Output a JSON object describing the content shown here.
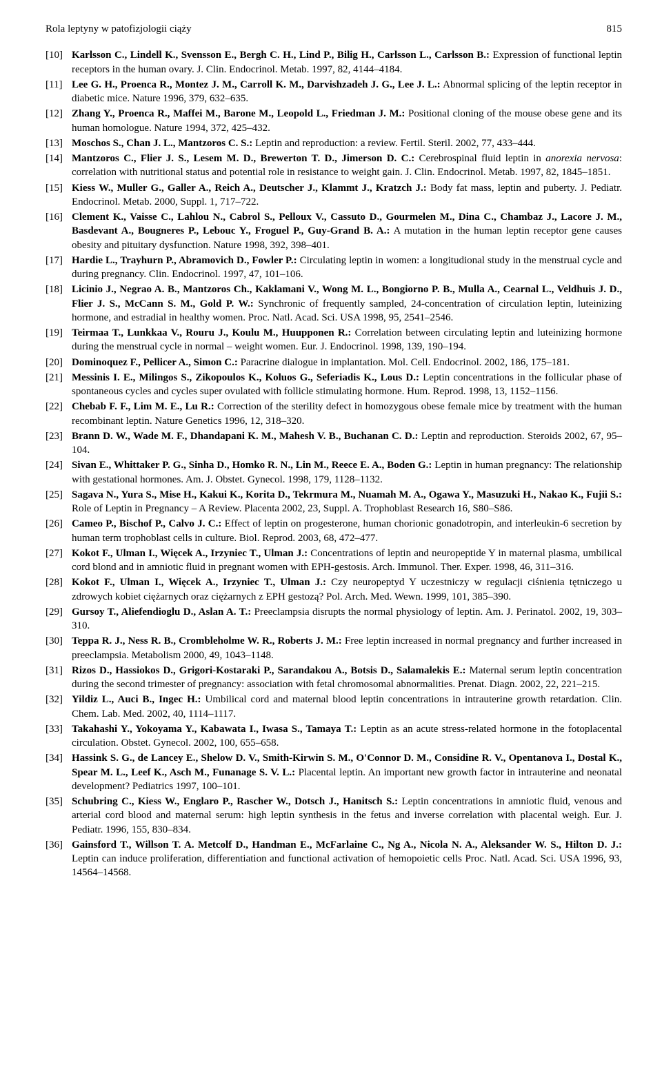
{
  "header": {
    "running_title": "Rola leptyny w patofizjologii ciąży",
    "page_number": "815"
  },
  "references": [
    {
      "num": "[10]",
      "authors": "Karlsson C., Lindell K., Svensson E., Bergh C. H., Lind P., Bilig H., Carlsson L., Carlsson B.:",
      "rest": " Expression of functional leptin receptors in the human ovary. J. Clin. Endocrinol. Metab. 1997, 82, 4144–4184."
    },
    {
      "num": "[11]",
      "authors": "Lee G. H., Proenca R., Montez J. M., Carroll K. M., Darvishzadeh J. G., Lee J. L.:",
      "rest": " Abnormal splicing of the leptin receptor in diabetic mice. Nature 1996, 379, 632–635."
    },
    {
      "num": "[12]",
      "authors": "Zhang Y., Proenca R., Maffei M., Barone M., Leopold L., Friedman J. M.:",
      "rest": " Positional cloning of the mouse obese gene and its human homologue. Nature 1994, 372, 425–432."
    },
    {
      "num": "[13]",
      "authors": "Moschos S., Chan J. L., Mantzoros C. S.:",
      "rest": " Leptin and reproduction: a review. Fertil. Steril. 2002, 77, 433–444."
    },
    {
      "num": "[14]",
      "authors": "Mantzoros C., Flier J. S., Lesem M. D., Brewerton T. D., Jimerson D. C.:",
      "rest": " Cerebrospinal fluid leptin in ",
      "italic": "anorexia nervosa",
      "rest2": ": correlation with nutritional status and potential role in resistance to weight gain. J. Clin. Endocrinol. Metab. 1997, 82, 1845–1851."
    },
    {
      "num": "[15]",
      "authors": "Kiess W., Muller G., Galler A., Reich A., Deutscher J., Klammt J., Kratzch J.:",
      "rest": " Body fat mass, leptin and puberty. J. Pediatr. Endocrinol. Metab. 2000, Suppl. 1, 717–722."
    },
    {
      "num": "[16]",
      "authors": "Clement K., Vaisse C., Lahlou N., Cabrol S., Pelloux V., Cassuto D., Gourmelen M., Dina C., Chambaz J., Lacore J. M., Basdevant A., Bougneres P., Lebouc Y., Froguel P., Guy-Grand B. A.:",
      "rest": " A mutation in the human leptin receptor gene causes obesity and pituitary dysfunction. Nature 1998, 392, 398–401."
    },
    {
      "num": "[17]",
      "authors": "Hardie L., Trayhurn P., Abramovich D., Fowler P.:",
      "rest": " Circulating leptin in women: a longitudional study in the menstrual cycle and during pregnancy. Clin. Endocrinol. 1997, 47, 101–106."
    },
    {
      "num": "[18]",
      "authors": "Licinio J., Negrao A. B., Mantzoros Ch., Kaklamani V., Wong M. L., Bongiorno P. B., Mulla A., Cearnal L., Veldhuis J. D., Flier J. S., McCann S. M., Gold P. W.:",
      "rest": " Synchronic of frequently sampled, 24-concentration of circulation leptin, luteinizing hormone, and estradial in healthy women. Proc. Natl. Acad. Sci. USA 1998, 95, 2541–2546."
    },
    {
      "num": "[19]",
      "authors": "Teirmaa T., Lunkkaa V., Rouru J., Koulu M., Huupponen R.:",
      "rest": " Correlation between circulating leptin and luteinizing hormone during the menstrual cycle in normal – weight women. Eur. J. Endocrinol. 1998, 139, 190–194."
    },
    {
      "num": "[20]",
      "authors": "Dominoquez F., Pellicer A., Simon C.:",
      "rest": " Paracrine dialogue in implantation. Mol. Cell. Endocrinol. 2002, 186, 175–181."
    },
    {
      "num": "[21]",
      "authors": "Messinis I. E., Milingos S., Zikopoulos K., Koluos G., Seferiadis K., Lous D.:",
      "rest": " Leptin concentrations in the follicular phase of spontaneous cycles and cycles super ovulated with follicle stimulating hormone. Hum. Reprod. 1998, 13, 1152–1156."
    },
    {
      "num": "[22]",
      "authors": "Chebab F. F., Lim M. E., Lu R.:",
      "rest": " Correction of the sterility defect in homozygous obese female mice by treatment with the human recombinant leptin. Nature Genetics 1996, 12, 318–320."
    },
    {
      "num": "[23]",
      "authors": "Brann D. W., Wade M. F., Dhandapani K. M., Mahesh V. B., Buchanan C. D.:",
      "rest": " Leptin and reproduction. Steroids 2002, 67, 95–104."
    },
    {
      "num": "[24]",
      "authors": "Sivan E., Whittaker P. G., Sinha D., Homko R. N., Lin M., Reece E. A., Boden G.:",
      "rest": " Leptin in human pregnancy: The relationship with gestational hormones. Am. J. Obstet. Gynecol. 1998, 179, 1128–1132."
    },
    {
      "num": "[25]",
      "authors": "Sagava N., Yura S., Mise H., Kakui K., Korita D., Tekrmura M., Nuamah M. A., Ogawa Y., Masuzuki H., Nakao K., Fujii S.:",
      "rest": " Role of Leptin in Pregnancy – A Review. Placenta 2002, 23, Suppl. A. Trophoblast Research 16, S80–S86."
    },
    {
      "num": "[26]",
      "authors": "Cameo P., Bischof P., Calvo J. C.:",
      "rest": " Effect of leptin on progesterone, human chorionic gonadotropin, and interleukin-6 secretion by human term trophoblast cells in culture. Biol. Reprod. 2003, 68, 472–477."
    },
    {
      "num": "[27]",
      "authors": "Kokot F., Ulman I., Więcek A., Irzyniec T., Ulman J.:",
      "rest": " Concentrations of leptin and neuropeptide Y in maternal plasma, umbilical cord blond and in amniotic fluid in pregnant women with EPH-gestosis. Arch. Immunol. Ther. Exper. 1998, 46, 311–316."
    },
    {
      "num": "[28]",
      "authors": "Kokot F., Ulman I., Więcek A., Irzyniec T., Ulman J.:",
      "rest": " Czy neuropeptyd Y uczestniczy w regulacji ciśnienia tętniczego u zdrowych kobiet ciężarnych oraz ciężarnych z EPH gestozą? Pol. Arch. Med. Wewn. 1999, 101, 385–390."
    },
    {
      "num": "[29]",
      "authors": "Gursoy T., Aliefendioglu D., Aslan A. T.:",
      "rest": " Preeclampsia disrupts the normal physiology of leptin. Am. J. Perinatol. 2002, 19, 303–310."
    },
    {
      "num": "[30]",
      "authors": "Teppa R. J., Ness R. B., Crombleholme W. R., Roberts J. M.:",
      "rest": " Free leptin increased in normal pregnancy and further increased in preeclampsia. Metabolism 2000, 49, 1043–1148."
    },
    {
      "num": "[31]",
      "authors": "Rizos D., Hassiokos D., Grigori-Kostaraki P., Sarandakou A., Botsis D., Salamalekis E.:",
      "rest": " Maternal serum leptin concentration during the second trimester of pregnancy: association with fetal chromosomal abnormalities. Prenat. Diagn. 2002, 22, 221–215."
    },
    {
      "num": "[32]",
      "authors": "Yildiz L., Auci B., Ingec H.:",
      "rest": " Umbilical cord and maternal blood leptin concentrations in intrauterine growth retardation. Clin. Chem. Lab. Med. 2002, 40, 1114–1117."
    },
    {
      "num": "[33]",
      "authors": "Takahashi Y., Yokoyama Y., Kabawata I., Iwasa S., Tamaya T.:",
      "rest": " Leptin as an acute stress-related hormone in the fotoplacental circulation. Obstet. Gynecol. 2002, 100, 655–658."
    },
    {
      "num": "[34]",
      "authors": "Hassink S. G., de Lancey E., Shelow D. V., Smith-Kirwin S. M., O'Connor D. M., Considine R. V., Opentanova I., Dostal K., Spear M. L., Leef K., Asch M., Funanage S. V. L.:",
      "rest": " Placental leptin. An important new growth factor in intrauterine and neonatal development? Pediatrics 1997, 100–101."
    },
    {
      "num": "[35]",
      "authors": "Schubring C., Kiess W., Englaro P., Rascher W., Dotsch J., Hanitsch S.:",
      "rest": " Leptin concentrations in amniotic fluid, venous and arterial cord blood and maternal serum: high leptin synthesis in the fetus and inverse correlation with placental weigh. Eur. J. Pediatr. 1996, 155, 830–834."
    },
    {
      "num": "[36]",
      "authors": "Gainsford T., Willson T. A. Metcolf D., Handman E., McFarlaine C., Ng A., Nicola N. A., Aleksander W. S., Hilton D. J.:",
      "rest": " Leptin can induce proliferation, differentiation and functional activation of hemopoietic cells Proc. Natl. Acad. Sci. USA 1996, 93, 14564–14568."
    }
  ]
}
